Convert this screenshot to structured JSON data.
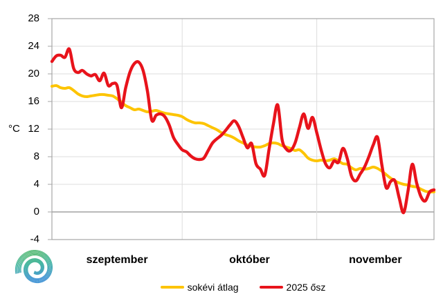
{
  "chart_data": {
    "type": "line",
    "title": "",
    "grid": true,
    "legend_position": "bottom",
    "background": "#ffffff",
    "y_axis": {
      "label": "°C",
      "ticks": [
        28,
        24,
        20,
        16,
        12,
        8,
        4,
        0,
        -4
      ],
      "ylim": [
        -4,
        28
      ],
      "gridline_color": "#dcdcdc",
      "zero_line_color": "#8f8f8f",
      "border_color": "#a6a6a6"
    },
    "x_axis": {
      "labels": [
        "szeptember",
        "október",
        "november"
      ],
      "month_days": [
        30,
        31,
        28
      ],
      "start": "szeptember 1",
      "end": "november 28"
    },
    "series": [
      {
        "name": "sokévi átlag",
        "color": "#fdc400",
        "values": [
          18.2,
          18.3,
          18.0,
          17.9,
          18.0,
          17.6,
          17.1,
          16.8,
          16.7,
          16.8,
          16.9,
          17.0,
          17.0,
          16.9,
          16.8,
          16.4,
          15.9,
          15.4,
          15.1,
          14.8,
          14.9,
          14.7,
          14.5,
          14.6,
          14.7,
          14.5,
          14.3,
          14.2,
          14.1,
          14.0,
          13.8,
          13.4,
          13.1,
          12.9,
          12.9,
          12.8,
          12.5,
          12.2,
          11.9,
          11.5,
          11.2,
          11.0,
          10.7,
          10.3,
          10.0,
          9.7,
          9.5,
          9.4,
          9.4,
          9.6,
          9.9,
          10.0,
          9.9,
          9.6,
          9.4,
          9.2,
          8.9,
          9.0,
          8.5,
          7.8,
          7.5,
          7.4,
          7.5,
          7.4,
          7.5,
          7.7,
          7.4,
          7.0,
          6.9,
          6.4,
          6.1,
          6.3,
          6.2,
          6.3,
          6.5,
          6.3,
          5.9,
          5.4,
          4.9,
          4.5,
          4.2,
          4.0,
          3.9,
          3.7,
          3.6,
          3.3,
          3.0,
          2.9,
          2.9
        ]
      },
      {
        "name": "2025 ősz",
        "color": "#e8131b",
        "values": [
          21.8,
          22.6,
          22.7,
          22.4,
          23.6,
          20.8,
          20.2,
          20.5,
          20.0,
          19.7,
          19.9,
          19.0,
          20.1,
          18.3,
          18.6,
          18.3,
          15.1,
          18.0,
          20.3,
          21.5,
          21.7,
          20.5,
          17.5,
          13.3,
          14.0,
          14.2,
          13.8,
          12.6,
          10.8,
          9.8,
          9.0,
          8.7,
          8.1,
          7.7,
          7.6,
          7.8,
          8.9,
          10.0,
          10.6,
          11.1,
          11.8,
          12.6,
          13.2,
          12.4,
          10.8,
          9.3,
          9.9,
          7.0,
          6.2,
          5.3,
          9.0,
          12.7,
          15.5,
          10.5,
          9.1,
          8.9,
          10.0,
          12.2,
          14.2,
          12.1,
          13.7,
          11.5,
          9.0,
          7.0,
          6.4,
          7.4,
          7.2,
          9.2,
          7.8,
          5.2,
          4.5,
          5.5,
          6.5,
          8.0,
          9.7,
          10.8,
          6.8,
          3.5,
          4.4,
          4.5,
          2.0,
          -0.1,
          3.0,
          6.9,
          4.2,
          2.2,
          1.6,
          2.9,
          3.2
        ]
      }
    ],
    "legend": [
      {
        "label": "sokévi átlag",
        "color": "#fdc400"
      },
      {
        "label": "2025 ősz",
        "color": "#e8131b"
      }
    ]
  }
}
